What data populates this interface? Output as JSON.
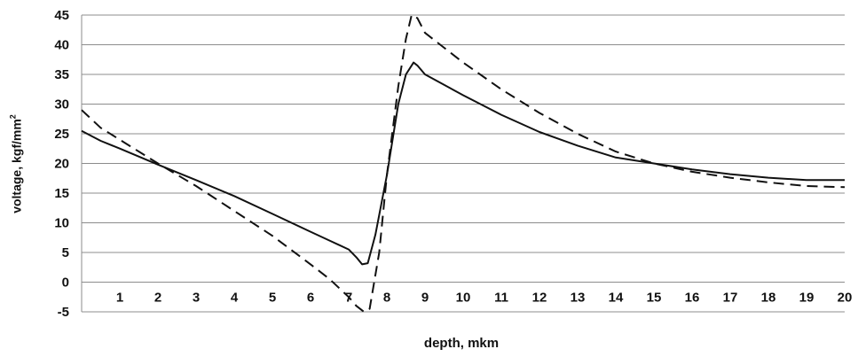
{
  "chart_data": {
    "type": "line",
    "xlabel": "depth, mkm",
    "ylabel": "voltage, kgf/mm",
    "ylabel_superscript": "2",
    "xlim": [
      0,
      20
    ],
    "ylim": [
      -5,
      45
    ],
    "xticks": [
      1,
      2,
      3,
      4,
      5,
      6,
      7,
      8,
      9,
      10,
      11,
      12,
      13,
      14,
      15,
      16,
      17,
      18,
      19,
      20
    ],
    "yticks": [
      -5,
      0,
      5,
      10,
      15,
      20,
      25,
      30,
      35,
      40,
      45
    ],
    "grid": "horizontal",
    "legend": "none",
    "series": [
      {
        "style": "solid",
        "color": "#111111",
        "x": [
          0,
          0.5,
          1,
          2,
          3,
          4,
          5,
          6,
          6.5,
          7,
          7.2,
          7.35,
          7.5,
          7.7,
          8,
          8.3,
          8.5,
          8.7,
          8.8,
          9,
          10,
          11,
          12,
          13,
          14,
          15,
          16,
          17,
          18,
          19,
          20
        ],
        "y": [
          25.5,
          23.8,
          22.5,
          19.8,
          17.2,
          14.5,
          11.5,
          8.5,
          7,
          5.5,
          4.2,
          3.0,
          3.2,
          8,
          18,
          30,
          35,
          37,
          36.5,
          35,
          31.5,
          28.2,
          25.3,
          23,
          21,
          20,
          19,
          18.2,
          17.6,
          17.2,
          17.2
        ]
      },
      {
        "style": "dashed",
        "color": "#111111",
        "x": [
          0,
          0.5,
          1,
          2,
          3,
          4,
          5,
          6,
          6.5,
          7,
          7.2,
          7.4,
          7.55,
          7.8,
          8,
          8.3,
          8.5,
          8.65,
          8.8,
          9,
          10,
          11,
          12,
          13,
          14,
          15,
          16,
          17,
          18,
          19,
          20
        ],
        "y": [
          29,
          26,
          24,
          20,
          16.2,
          12,
          7.8,
          3,
          0.5,
          -2.5,
          -4,
          -5,
          -4.5,
          5,
          18,
          33,
          41,
          45,
          44.5,
          42,
          37,
          32.5,
          28.5,
          25,
          22,
          20,
          18.6,
          17.6,
          16.8,
          16.2,
          16
        ]
      }
    ]
  }
}
